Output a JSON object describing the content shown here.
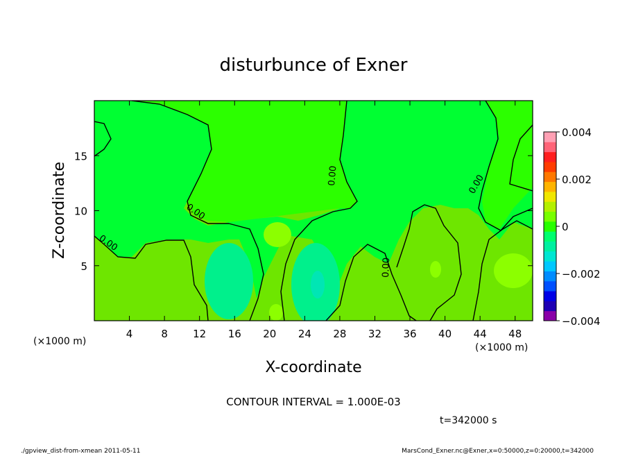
{
  "chart_data": {
    "type": "contour",
    "title": "disturbunce of Exner",
    "xlabel": "X-coordinate",
    "ylabel": "Z-coordinate",
    "x_unit": "(×1000 m)",
    "y_unit": "(×1000 m)",
    "xlim": [
      0,
      50
    ],
    "ylim": [
      0,
      20
    ],
    "x_ticks": [
      4,
      8,
      12,
      16,
      20,
      24,
      28,
      32,
      36,
      40,
      44,
      48
    ],
    "y_ticks": [
      5,
      10,
      15
    ],
    "contour_label": "0.00",
    "contour_interval_text": "CONTOUR INTERVAL = 1.000E-03",
    "colorbar": {
      "min": -0.004,
      "max": 0.004,
      "tick_values": [
        0.004,
        0.002,
        0,
        -0.002,
        -0.004
      ],
      "tick_labels": [
        "0.004",
        "0.002",
        "0",
        "−0.002",
        "−0.004"
      ],
      "colors": [
        "#8a00a8",
        "#1e00b4",
        "#0000e6",
        "#0050ff",
        "#008cff",
        "#00c8ff",
        "#00e6d2",
        "#00f0a0",
        "#00ff6e",
        "#28ff00",
        "#78ff00",
        "#b4f000",
        "#f0e600",
        "#ffb400",
        "#ff7800",
        "#ff3c00",
        "#ff1e1e",
        "#ff6478",
        "#ffa0b4"
      ]
    }
  },
  "annotations": {
    "time": "t=342000 s",
    "footer_left": "./gpview_dist-from-xmean  2011-05-11",
    "footer_right": "MarsCond_Exner.nc@Exner,x=0:50000,z=0:20000,t=342000"
  }
}
